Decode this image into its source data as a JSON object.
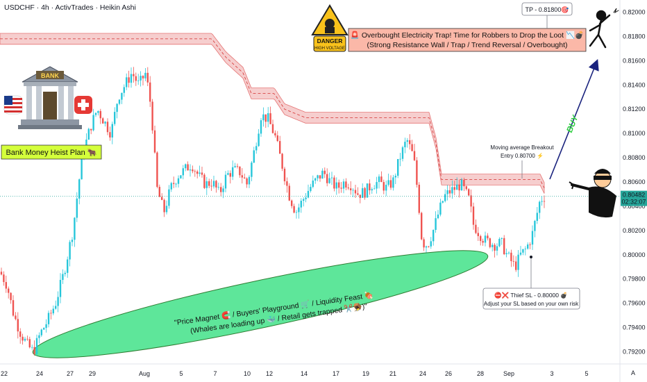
{
  "header": {
    "title": "USDCHF · 4h · ActivTrades · Heikin Ashi"
  },
  "chart_data": {
    "type": "candlestick",
    "symbol": "USDCHF",
    "timeframe": "4h",
    "broker": "ActivTrades",
    "style": "Heikin Ashi",
    "ylim": [
      0.791,
      0.821
    ],
    "y_ticks": [
      "0.79200",
      "0.79400",
      "0.79600",
      "0.79800",
      "0.80000",
      "0.80200",
      "0.80400",
      "0.80600",
      "0.80800",
      "0.81000",
      "0.81200",
      "0.81400",
      "0.81600",
      "0.81800",
      "0.82000"
    ],
    "x_ticks": [
      "22",
      "24",
      "27",
      "29",
      "Aug",
      "5",
      "7",
      "10",
      "12",
      "14",
      "17",
      "19",
      "21",
      "24",
      "26",
      "28",
      "Sep",
      "3",
      "5"
    ],
    "last_price": "0.80482",
    "countdown": "02:32:07",
    "up_color": "#26c6da",
    "down_color": "#ef5350",
    "price_path": [
      [
        0,
        0.7986
      ],
      [
        10,
        0.7975
      ],
      [
        20,
        0.795
      ],
      [
        30,
        0.7935
      ],
      [
        40,
        0.7925
      ],
      [
        48,
        0.792
      ],
      [
        58,
        0.7935
      ],
      [
        68,
        0.7945
      ],
      [
        80,
        0.796
      ],
      [
        92,
        0.7985
      ],
      [
        105,
        0.802
      ],
      [
        118,
        0.808
      ],
      [
        130,
        0.8105
      ],
      [
        140,
        0.812
      ],
      [
        150,
        0.811
      ],
      [
        160,
        0.81
      ],
      [
        170,
        0.813
      ],
      [
        180,
        0.814
      ],
      [
        190,
        0.815
      ],
      [
        200,
        0.814
      ],
      [
        210,
        0.815
      ],
      [
        218,
        0.812
      ],
      [
        226,
        0.8055
      ],
      [
        236,
        0.8035
      ],
      [
        246,
        0.8055
      ],
      [
        256,
        0.8065
      ],
      [
        266,
        0.807
      ],
      [
        276,
        0.8075
      ],
      [
        286,
        0.8065
      ],
      [
        296,
        0.8058
      ],
      [
        306,
        0.806
      ],
      [
        316,
        0.805
      ],
      [
        326,
        0.8065
      ],
      [
        336,
        0.807
      ],
      [
        346,
        0.8068
      ],
      [
        356,
        0.8058
      ],
      [
        366,
        0.8085
      ],
      [
        376,
        0.8115
      ],
      [
        386,
        0.8112
      ],
      [
        396,
        0.8098
      ],
      [
        406,
        0.8075
      ],
      [
        416,
        0.805
      ],
      [
        426,
        0.8035
      ],
      [
        436,
        0.8045
      ],
      [
        446,
        0.8055
      ],
      [
        456,
        0.8062
      ],
      [
        466,
        0.8068
      ],
      [
        476,
        0.806
      ],
      [
        486,
        0.8055
      ],
      [
        496,
        0.806
      ],
      [
        506,
        0.8058
      ],
      [
        516,
        0.805
      ],
      [
        526,
        0.8052
      ],
      [
        536,
        0.8058
      ],
      [
        546,
        0.806
      ],
      [
        556,
        0.8055
      ],
      [
        566,
        0.806
      ],
      [
        576,
        0.808
      ],
      [
        586,
        0.8095
      ],
      [
        596,
        0.808
      ],
      [
        602,
        0.805
      ],
      [
        608,
        0.801
      ],
      [
        616,
        0.8008
      ],
      [
        624,
        0.802
      ],
      [
        632,
        0.8035
      ],
      [
        640,
        0.8048
      ],
      [
        648,
        0.8052
      ],
      [
        656,
        0.8055
      ],
      [
        664,
        0.8058
      ],
      [
        670,
        0.8052
      ],
      [
        676,
        0.8045
      ],
      [
        682,
        0.8025
      ],
      [
        690,
        0.8018
      ],
      [
        698,
        0.8012
      ],
      [
        706,
        0.801
      ],
      [
        714,
        0.8008
      ],
      [
        722,
        0.801
      ],
      [
        730,
        0.8
      ],
      [
        736,
        0.7995
      ],
      [
        742,
        0.799
      ],
      [
        750,
        0.8
      ],
      [
        758,
        0.8005
      ],
      [
        766,
        0.8015
      ],
      [
        772,
        0.803
      ],
      [
        778,
        0.8045
      ],
      [
        784,
        0.8048
      ]
    ],
    "resistance_path": [
      [
        0,
        0.8178
      ],
      [
        305,
        0.8178
      ],
      [
        325,
        0.8163
      ],
      [
        350,
        0.815
      ],
      [
        362,
        0.8133
      ],
      [
        395,
        0.8133
      ],
      [
        410,
        0.812
      ],
      [
        440,
        0.8113
      ],
      [
        618,
        0.8113
      ],
      [
        628,
        0.8092
      ],
      [
        636,
        0.8062
      ],
      [
        778,
        0.8062
      ],
      [
        784,
        0.8055
      ]
    ],
    "annotations": {
      "bank_plan": "Bank Money Heist Plan 🐂",
      "danger_label_1": "DANGER",
      "danger_label_2": "HIGH VOLTAGE",
      "trap_line1": "🚨 Overbought Electricity Trap! Time for Robbers to Drop the Loot 📉💣",
      "trap_line2": "(Strong Resistance Wall / Trap / Trend Reversal / Overbought)",
      "tp": "TP - 0.81800🎯",
      "entry_line1": "Moving average Breakout",
      "entry_line2": "Entry 0.80700 ⚡",
      "buy": "BUY",
      "sl_line1": "⛔❌ Thief SL - 0.80000 💣",
      "sl_line2": "Adjust your SL based on your own risk",
      "zone_line1": "\"Price Magnet 🧲 / Buyers' Playground 🛒 / Liquidity Feast 🍖",
      "zone_line2": "(Whales are loading up 🐳 / Retail gets trapped ✂️🪤)\"",
      "bank_sign": "BANK"
    },
    "colors": {
      "resistance_fill": "#f5c6c6",
      "resistance_line": "#e57373",
      "zone_fill": "#4de38f",
      "plan_bg": "#d4ff3b",
      "trap_bg": "#fbb8a8",
      "buy_text": "#2ecc40",
      "arrow": "#1a237e"
    }
  }
}
